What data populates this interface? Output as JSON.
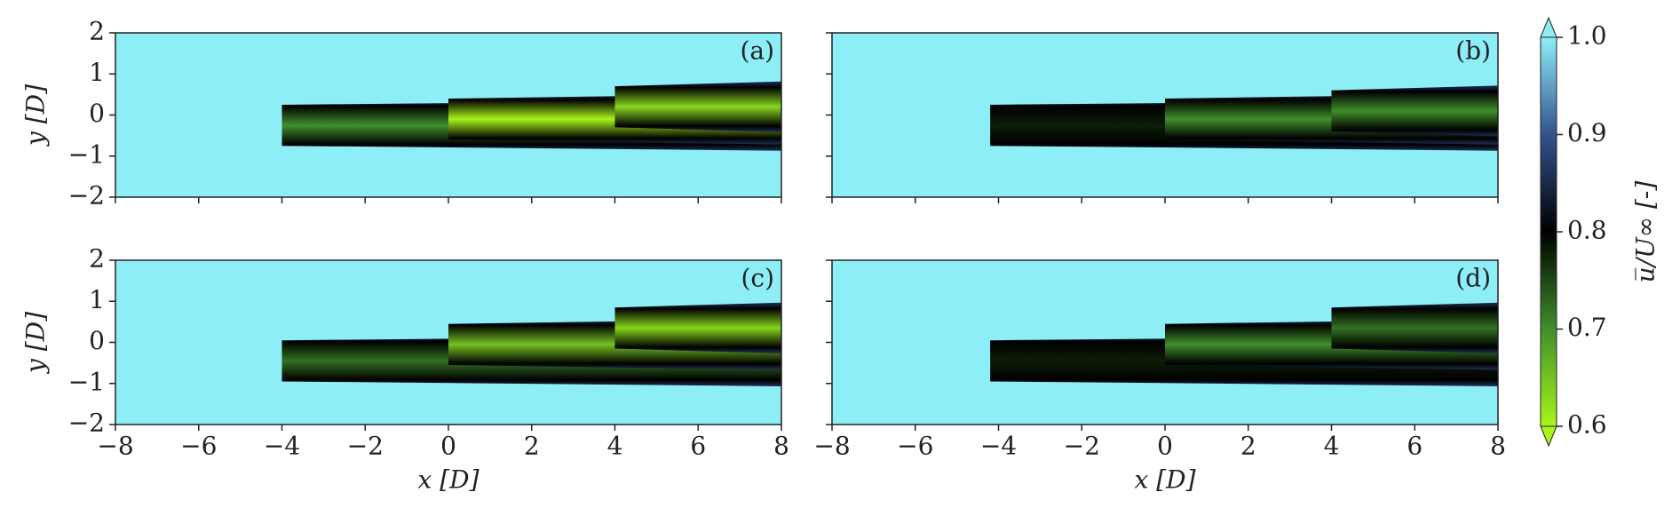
{
  "chart_data": [
    {
      "type": "contour",
      "label": "(a)",
      "ylabel": "y [D]",
      "xticklabels": false,
      "yticklabels": true,
      "xlim": [
        -8,
        8
      ],
      "xticks": [
        {
          "value": -8,
          "label": "−8"
        },
        {
          "value": -6,
          "label": "−6"
        },
        {
          "value": -4,
          "label": "−4"
        },
        {
          "value": -2,
          "label": "−2"
        },
        0,
        2,
        4,
        6,
        8
      ],
      "ylim": [
        -2,
        2
      ],
      "yticks": [
        {
          "value": -2,
          "label": "−2"
        },
        {
          "value": -1,
          "label": "−1"
        },
        0,
        1,
        2
      ],
      "turbines": {
        "x": [
          -4,
          0,
          4
        ],
        "y": [
          -0.25,
          -0.1,
          0.2
        ],
        "u_min": [
          0.7,
          0.6,
          0.63
        ]
      }
    },
    {
      "type": "contour",
      "label": "(b)",
      "xticklabels": false,
      "yticklabels": false,
      "xlim": [
        -8,
        8
      ],
      "xticks": [
        {
          "value": -8,
          "label": "−8"
        },
        {
          "value": -6,
          "label": "−6"
        },
        {
          "value": -4,
          "label": "−4"
        },
        {
          "value": -2,
          "label": "−2"
        },
        0,
        2,
        4,
        6,
        8
      ],
      "ylim": [
        -2,
        2
      ],
      "yticks": [
        {
          "value": -2,
          "label": "−2"
        },
        {
          "value": -1,
          "label": "−1"
        },
        0,
        1,
        2
      ],
      "turbines": {
        "x": [
          -4.2,
          0,
          4
        ],
        "y": [
          -0.25,
          -0.1,
          0.1
        ],
        "u_min": [
          0.78,
          0.7,
          0.7
        ]
      }
    },
    {
      "type": "contour",
      "label": "(c)",
      "xlabel": "x [D]",
      "ylabel": "y [D]",
      "xticklabels": true,
      "yticklabels": true,
      "xlim": [
        -8,
        8
      ],
      "xticks": [
        {
          "value": -8,
          "label": "−8"
        },
        {
          "value": -6,
          "label": "−6"
        },
        {
          "value": -4,
          "label": "−4"
        },
        {
          "value": -2,
          "label": "−2"
        },
        0,
        2,
        4,
        6,
        8
      ],
      "ylim": [
        -2,
        2
      ],
      "yticks": [
        {
          "value": -2,
          "label": "−2"
        },
        {
          "value": -1,
          "label": "−1"
        },
        0,
        1,
        2
      ],
      "turbines": {
        "x": [
          -4,
          0,
          4
        ],
        "y": [
          -0.45,
          -0.05,
          0.35
        ],
        "u_min": [
          0.72,
          0.65,
          0.63
        ]
      }
    },
    {
      "type": "contour",
      "label": "(d)",
      "xlabel": "x [D]",
      "xticklabels": true,
      "yticklabels": false,
      "xlim": [
        -8,
        8
      ],
      "xticks": [
        {
          "value": -8,
          "label": "−8"
        },
        {
          "value": -6,
          "label": "−6"
        },
        {
          "value": -4,
          "label": "−4"
        },
        {
          "value": -2,
          "label": "−2"
        },
        0,
        2,
        4,
        6,
        8
      ],
      "ylim": [
        -2,
        2
      ],
      "yticks": [
        {
          "value": -2,
          "label": "−2"
        },
        {
          "value": -1,
          "label": "−1"
        },
        0,
        1,
        2
      ],
      "turbines": {
        "x": [
          -4.2,
          0,
          4
        ],
        "y": [
          -0.45,
          -0.05,
          0.35
        ],
        "u_min": [
          0.78,
          0.7,
          0.72
        ]
      }
    }
  ],
  "colorbar": {
    "label": "u̅/U∞ [-]",
    "clim": [
      0.6,
      1.0
    ],
    "ticks": [
      0.6,
      0.7,
      0.8,
      0.9,
      {
        "value": 1,
        "label": "1.0"
      }
    ],
    "colors": [
      "#a8f51a",
      "#3f8f2c",
      "#000000",
      "#33538f",
      "#8eeef8"
    ]
  }
}
